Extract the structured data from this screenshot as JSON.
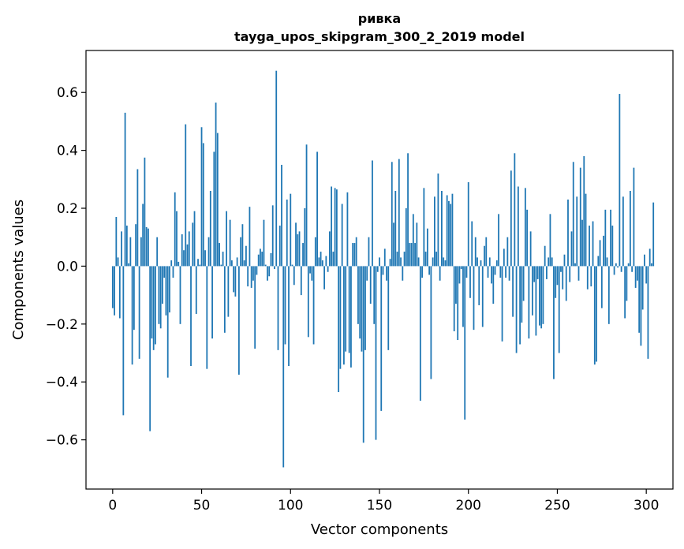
{
  "chart_data": {
    "type": "bar",
    "title": "ривка",
    "subtitle": "tayga_upos_skipgram_300_2_2019 model",
    "xlabel": "Vector components",
    "ylabel": "Components values",
    "xlim": [
      -15,
      315
    ],
    "ylim": [
      -0.77,
      0.745
    ],
    "x_ticks": [
      0,
      50,
      100,
      150,
      200,
      250,
      300
    ],
    "x_tick_labels": [
      "0",
      "50",
      "100",
      "150",
      "200",
      "250",
      "300"
    ],
    "y_ticks": [
      -0.6,
      -0.4,
      -0.2,
      0.0,
      0.2,
      0.4,
      0.6
    ],
    "y_tick_labels": [
      "−0.6",
      "−0.4",
      "−0.2",
      "0.0",
      "0.2",
      "0.4",
      "0.6"
    ],
    "grid": false,
    "bar_color": "#1f77b4",
    "values": [
      -0.145,
      -0.17,
      0.17,
      0.03,
      -0.18,
      0.12,
      -0.515,
      0.53,
      0.14,
      0.01,
      0.1,
      -0.34,
      -0.22,
      0.145,
      0.335,
      -0.32,
      0.1,
      0.215,
      0.375,
      0.135,
      0.13,
      -0.57,
      -0.25,
      -0.29,
      -0.27,
      0.1,
      -0.2,
      -0.215,
      -0.13,
      -0.04,
      -0.17,
      -0.385,
      -0.16,
      0.02,
      -0.04,
      0.255,
      0.19,
      0.015,
      -0.2,
      0.11,
      0.055,
      0.49,
      0.075,
      0.12,
      -0.345,
      0.15,
      0.19,
      -0.165,
      0.025,
      0.005,
      0.48,
      0.425,
      0.055,
      -0.355,
      0.1,
      0.26,
      -0.25,
      0.395,
      0.565,
      0.46,
      0.08,
      0.005,
      0.05,
      -0.23,
      0.19,
      -0.175,
      0.16,
      0.02,
      -0.09,
      -0.105,
      0.03,
      -0.375,
      0.1,
      0.145,
      0.02,
      0.07,
      -0.07,
      0.205,
      -0.075,
      -0.05,
      -0.285,
      -0.03,
      0.04,
      0.06,
      0.05,
      0.16,
      0.005,
      -0.05,
      -0.035,
      0.045,
      0.21,
      -0.01,
      0.675,
      -0.29,
      0.14,
      0.35,
      -0.695,
      -0.27,
      0.23,
      -0.345,
      0.25,
      0.005,
      -0.065,
      0.15,
      0.11,
      0.12,
      -0.1,
      0.08,
      0.2,
      0.42,
      -0.245,
      -0.025,
      -0.05,
      -0.27,
      0.1,
      0.395,
      0.03,
      0.05,
      0.02,
      -0.08,
      0.035,
      -0.02,
      0.12,
      0.275,
      0.05,
      0.27,
      0.265,
      -0.435,
      -0.355,
      0.215,
      -0.34,
      -0.295,
      0.255,
      -0.3,
      -0.35,
      0.08,
      0.08,
      0.1,
      -0.2,
      -0.25,
      -0.295,
      -0.61,
      -0.29,
      -0.05,
      0.1,
      -0.13,
      0.365,
      -0.2,
      -0.6,
      -0.02,
      0.03,
      -0.5,
      -0.03,
      0.06,
      -0.05,
      -0.29,
      0.025,
      0.36,
      0.15,
      0.26,
      0.05,
      0.37,
      0.03,
      -0.05,
      0.05,
      0.2,
      0.39,
      0.08,
      0.08,
      0.18,
      0.08,
      0.15,
      0.03,
      -0.465,
      -0.04,
      0.27,
      0.05,
      0.13,
      -0.03,
      -0.39,
      0.03,
      0.24,
      0.05,
      0.32,
      -0.05,
      0.26,
      0.03,
      0.02,
      0.245,
      0.225,
      0.215,
      0.25,
      -0.225,
      -0.13,
      -0.255,
      -0.06,
      -0.01,
      -0.21,
      -0.53,
      -0.04,
      0.29,
      -0.11,
      0.155,
      -0.22,
      0.1,
      0.03,
      -0.135,
      0.02,
      -0.21,
      0.07,
      0.1,
      -0.04,
      0.03,
      -0.06,
      -0.13,
      -0.03,
      0.02,
      0.18,
      -0.04,
      -0.26,
      0.06,
      -0.04,
      0.1,
      -0.05,
      0.33,
      -0.175,
      0.39,
      -0.3,
      0.275,
      -0.27,
      -0.195,
      -0.12,
      0.27,
      0.195,
      -0.25,
      0.12,
      -0.17,
      -0.055,
      -0.24,
      -0.045,
      -0.205,
      -0.215,
      -0.2,
      0.07,
      -0.045,
      0.03,
      0.18,
      0.03,
      -0.39,
      -0.11,
      -0.065,
      -0.3,
      -0.02,
      -0.08,
      0.04,
      -0.12,
      0.23,
      -0.055,
      0.12,
      0.36,
      0.01,
      0.24,
      -0.05,
      0.34,
      0.16,
      0.38,
      0.25,
      -0.08,
      0.14,
      -0.07,
      0.155,
      -0.34,
      -0.33,
      0.035,
      0.09,
      -0.145,
      0.105,
      0.195,
      0.03,
      -0.2,
      0.195,
      0.14,
      -0.03,
      0.01,
      -0.005,
      0.595,
      -0.02,
      0.24,
      -0.18,
      -0.12,
      0.01,
      0.26,
      -0.02,
      0.34,
      -0.075,
      -0.05,
      -0.23,
      -0.275,
      -0.15,
      0.04,
      -0.06,
      -0.32,
      0.06,
      0.01,
      0.22
    ]
  }
}
